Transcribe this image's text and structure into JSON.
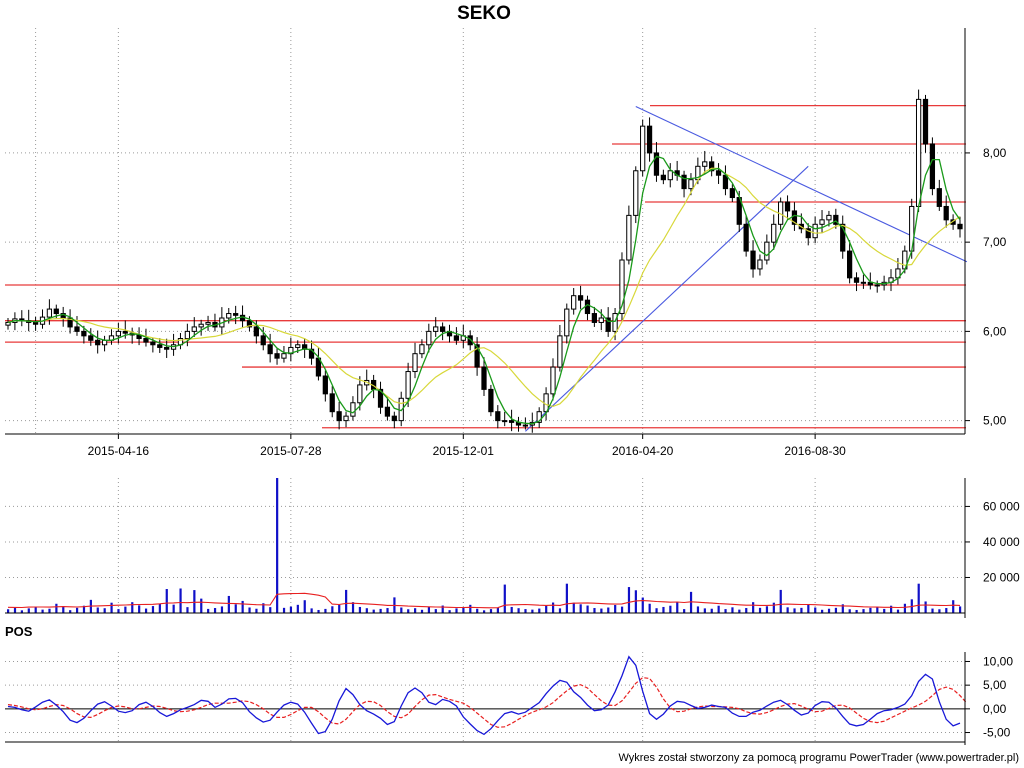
{
  "title": "SEKO",
  "footer": "Wykres został stworzony za pomocą programu PowerTrader (www.powertrader.pl)",
  "colors": {
    "resistance": "#e83a3a",
    "trendline": "#4a5ae0",
    "ma_short": "#1a9a1a",
    "ma_long": "#d8d83a",
    "volume_bar": "#1010c8",
    "volume_avg": "#e82020",
    "pos_main": "#1818d8",
    "pos_signal": "#e82020",
    "candle_up": "#ffffff",
    "candle_down": "#000000"
  },
  "chart_data": [
    {
      "type": "candlestick",
      "xlabels": [
        "2015-04-16",
        "2015-07-28",
        "2015-12-01",
        "2016-04-20",
        "2016-08-30"
      ],
      "ytick_labels": [
        "5,00",
        "6,00",
        "7,00",
        "8,00"
      ],
      "yticks": [
        5,
        6,
        7,
        8
      ],
      "ylim": [
        4.85,
        9.4
      ],
      "grid": true,
      "close": [
        6.1,
        6.14,
        6.12,
        6.1,
        6.08,
        6.16,
        6.25,
        6.2,
        6.15,
        6.05,
        6.0,
        5.95,
        5.9,
        5.85,
        5.9,
        5.95,
        6.0,
        5.98,
        5.96,
        5.92,
        5.88,
        5.85,
        5.82,
        5.8,
        5.85,
        5.92,
        6.0,
        6.05,
        6.08,
        6.1,
        6.05,
        6.15,
        6.2,
        6.18,
        6.12,
        6.05,
        5.95,
        5.85,
        5.75,
        5.7,
        5.75,
        5.82,
        5.85,
        5.8,
        5.7,
        5.5,
        5.3,
        5.1,
        5.0,
        5.05,
        5.2,
        5.4,
        5.45,
        5.35,
        5.15,
        5.05,
        5.0,
        5.25,
        5.55,
        5.75,
        5.85,
        6.0,
        6.05,
        6.0,
        5.95,
        5.9,
        5.95,
        5.85,
        5.6,
        5.35,
        5.1,
        5.0,
        5.0,
        4.98,
        4.95,
        4.95,
        4.98,
        5.1,
        5.3,
        5.6,
        5.95,
        6.25,
        6.4,
        6.35,
        6.2,
        6.1,
        6.15,
        6.0,
        6.2,
        6.8,
        7.3,
        7.8,
        8.3,
        8.0,
        7.75,
        7.7,
        7.8,
        7.75,
        7.6,
        7.7,
        7.85,
        7.9,
        7.8,
        7.75,
        7.6,
        7.5,
        7.2,
        6.9,
        6.7,
        6.8,
        7.0,
        7.2,
        7.45,
        7.35,
        7.2,
        7.15,
        7.05,
        7.2,
        7.25,
        7.3,
        7.2,
        6.9,
        6.6,
        6.55,
        6.55,
        6.52,
        6.52,
        6.55,
        6.6,
        6.7,
        6.9,
        7.4,
        8.6,
        8.1,
        7.6,
        7.4,
        7.25,
        7.2,
        7.15
      ],
      "resistance_levels": [
        4.92,
        5.6,
        5.88,
        6.12,
        6.52,
        7.45,
        8.1,
        8.53
      ],
      "trendlines": [
        {
          "from_index": 75,
          "from_value": 4.88,
          "to_index": 116,
          "to_value": 7.85
        },
        {
          "from_index": 91,
          "from_value": 8.52,
          "to_index": 139,
          "to_value": 6.78
        }
      ]
    },
    {
      "type": "bar",
      "name": "volume",
      "ytick_labels": [
        "20 000",
        "40 000",
        "60 000"
      ],
      "yticks": [
        20000,
        40000,
        60000
      ],
      "ylim": [
        0,
        76000
      ],
      "values": [
        2100,
        2800,
        1500,
        2600,
        3200,
        1900,
        2400,
        5200,
        3800,
        1600,
        2900,
        4100,
        7400,
        3100,
        2700,
        5800,
        2200,
        3600,
        6100,
        4300,
        2500,
        3900,
        5100,
        13500,
        4700,
        13800,
        3300,
        12900,
        8100,
        2300,
        2800,
        3700,
        9600,
        4900,
        6800,
        3100,
        2400,
        5500,
        3300,
        76000,
        2900,
        3600,
        4600,
        7200,
        2600,
        1700,
        2300,
        3800,
        4500,
        13000,
        6100,
        3400,
        2700,
        1900,
        2300,
        2800,
        8800,
        3100,
        2100,
        2700,
        1800,
        3600,
        2200,
        4200,
        1600,
        2600,
        3300,
        4600,
        2400,
        1500,
        2200,
        2800,
        16000,
        3400,
        2700,
        2200,
        1900,
        2500,
        4400,
        5900,
        2600,
        16500,
        5800,
        4900,
        4200,
        2800,
        2500,
        3100,
        4500,
        3600,
        14600,
        12800,
        8700,
        5200,
        2700,
        3400,
        4100,
        6300,
        2200,
        11900,
        3700,
        2600,
        2400,
        4100,
        2200,
        3200,
        1900,
        2800,
        6100,
        2900,
        3800,
        5800,
        13000,
        3200,
        2600,
        2900,
        4600,
        3100,
        1800,
        2400,
        2900,
        4900,
        2100,
        1700,
        2200,
        2900,
        3500,
        2300,
        4100,
        1900,
        5200,
        7700,
        16500,
        6500,
        2500,
        2100,
        2800,
        7200,
        3700
      ],
      "avg": [
        3200,
        3150,
        3100,
        3300,
        3400,
        3350,
        3300,
        3500,
        3600,
        3500,
        3400,
        3550,
        3900,
        4000,
        4100,
        4300,
        4400,
        4500,
        4700,
        4800,
        4850,
        4900,
        5200,
        5600,
        5700,
        5900,
        5800,
        6000,
        6100,
        5900,
        5700,
        5500,
        5400,
        5300,
        5100,
        4900,
        4700,
        4600,
        4500,
        10500,
        10800,
        10900,
        11000,
        11100,
        10600,
        10000,
        9000,
        5000,
        4800,
        5400,
        5500,
        5300,
        5100,
        4900,
        4600,
        4300,
        4300,
        4100,
        3900,
        3800,
        3600,
        3500,
        3400,
        3300,
        3200,
        3100,
        3100,
        3200,
        3100,
        3000,
        2950,
        3000,
        4400,
        4600,
        4700,
        4800,
        4600,
        4400,
        4300,
        4400,
        4300,
        5200,
        5500,
        5600,
        5700,
        5500,
        5300,
        5100,
        5000,
        5100,
        6000,
        6800,
        7000,
        6800,
        6500,
        6300,
        6100,
        6200,
        5900,
        6300,
        6100,
        5800,
        5600,
        5300,
        5100,
        4900,
        4600,
        4400,
        4400,
        4300,
        4300,
        4400,
        4900,
        5000,
        4900,
        4800,
        4800,
        4700,
        4500,
        4300,
        4100,
        4000,
        3900,
        3700,
        3500,
        3400,
        3300,
        3200,
        3200,
        3100,
        3200,
        3600,
        4400,
        4500,
        4400,
        4300,
        4200,
        4400,
        4300
      ]
    },
    {
      "type": "line",
      "name": "POS",
      "ytick_labels": [
        "-5,00",
        "0,00",
        "5,00",
        "10,00"
      ],
      "yticks": [
        -5,
        0,
        5,
        10
      ],
      "ylim": [
        -7,
        12
      ],
      "series": [
        {
          "role": "main",
          "values": [
            0.5,
            0.3,
            -0.2,
            -0.5,
            0.4,
            1.4,
            1.9,
            0.8,
            -0.6,
            -2.4,
            -2.9,
            -2.0,
            -0.4,
            1.0,
            1.5,
            0.6,
            -0.5,
            -0.8,
            -0.4,
            0.9,
            1.4,
            0.5,
            -0.8,
            -1.6,
            -1.0,
            -0.2,
            0.3,
            0.9,
            1.8,
            1.6,
            0.3,
            1.0,
            2.1,
            2.2,
            1.3,
            -0.6,
            -1.9,
            -2.8,
            -2.4,
            -0.7,
            0.8,
            1.4,
            1.0,
            -0.7,
            -3.0,
            -5.2,
            -4.8,
            -2.2,
            1.7,
            4.3,
            3.0,
            0.9,
            -0.4,
            -1.1,
            -2.0,
            -3.3,
            -2.7,
            0.6,
            3.4,
            4.4,
            3.4,
            1.4,
            0.9,
            2.0,
            1.6,
            0.6,
            -1.7,
            -3.2,
            -4.6,
            -5.4,
            -4.2,
            -2.5,
            -1.0,
            -0.6,
            -1.1,
            -0.7,
            0.3,
            1.3,
            3.2,
            4.8,
            6.0,
            5.6,
            3.6,
            2.4,
            0.8,
            -0.4,
            -0.2,
            0.8,
            3.6,
            7.0,
            11.0,
            9.2,
            3.7,
            -1.0,
            -2.2,
            -1.1,
            0.6,
            1.6,
            1.4,
            0.7,
            0.1,
            0.3,
            0.8,
            0.5,
            0.3,
            -0.9,
            -1.6,
            -1.6,
            -0.7,
            -0.3,
            0.6,
            1.4,
            1.8,
            0.9,
            -0.3,
            -1.3,
            -0.9,
            0.7,
            1.5,
            1.4,
            0.2,
            -1.6,
            -3.2,
            -3.6,
            -3.3,
            -2.2,
            -1.0,
            -0.4,
            -0.2,
            0.3,
            1.0,
            2.8,
            5.8,
            7.3,
            6.3,
            1.5,
            -2.2,
            -3.6,
            -3.0
          ]
        },
        {
          "role": "signal",
          "values": [
            0.9,
            0.7,
            0.4,
            0.0,
            -0.2,
            0.0,
            0.5,
            0.9,
            0.7,
            0.0,
            -1.0,
            -1.7,
            -1.8,
            -1.2,
            -0.4,
            0.3,
            0.6,
            0.4,
            0.0,
            0.0,
            0.3,
            0.6,
            0.5,
            0.1,
            -0.4,
            -0.6,
            -0.5,
            -0.2,
            0.3,
            0.9,
            1.2,
            1.2,
            1.2,
            1.4,
            1.7,
            1.5,
            0.9,
            0.0,
            -1.1,
            -1.8,
            -1.8,
            -1.2,
            -0.4,
            0.3,
            0.3,
            -0.6,
            -1.9,
            -3.0,
            -3.2,
            -2.2,
            -0.6,
            0.9,
            1.6,
            1.5,
            0.7,
            -0.6,
            -1.6,
            -1.9,
            -1.1,
            0.5,
            1.9,
            2.9,
            3.0,
            2.5,
            2.0,
            1.6,
            1.2,
            0.3,
            -0.9,
            -2.1,
            -3.3,
            -3.9,
            -3.8,
            -3.1,
            -2.2,
            -1.4,
            -0.7,
            -0.2,
            0.4,
            1.3,
            2.6,
            3.8,
            4.8,
            5.1,
            4.4,
            3.0,
            1.7,
            0.8,
            0.7,
            1.7,
            3.5,
            5.4,
            6.6,
            6.4,
            4.6,
            2.1,
            0.2,
            -0.6,
            -0.5,
            0.0,
            0.4,
            0.6,
            0.5,
            0.5,
            0.4,
            0.3,
            0.0,
            -0.6,
            -1.0,
            -1.1,
            -0.8,
            -0.2,
            0.5,
            1.0,
            1.1,
            0.6,
            -0.1,
            -0.6,
            -0.5,
            0.1,
            0.7,
            0.8,
            0.2,
            -0.9,
            -2.0,
            -2.7,
            -2.9,
            -2.6,
            -1.9,
            -1.2,
            -0.5,
            0.2,
            0.8,
            1.6,
            2.8,
            4.1,
            4.6,
            4.1,
            2.8,
            1.2
          ]
        }
      ]
    }
  ]
}
